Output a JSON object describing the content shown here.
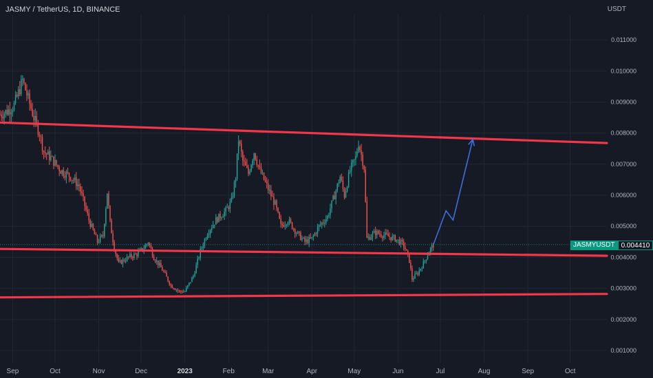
{
  "header": {
    "title": "JASMY / TetherUS, 1D, BINANCE",
    "currency": "USDT"
  },
  "price_tag": {
    "symbol": "JASMYUSDT",
    "value": "0.004410"
  },
  "colors": {
    "background": "#161a25",
    "up": "#26a69a",
    "down": "#ef5350",
    "trendline": "#f2374b",
    "projection": "#3d6fe0",
    "grid": "#232733",
    "axis_text": "#b2b5be"
  },
  "chart_data": {
    "type": "candlestick",
    "title": "JASMY / TetherUS, 1D, BINANCE",
    "yaxis": {
      "min": 0.0006,
      "max": 0.0118,
      "position": "right",
      "ticks": [
        0.001,
        0.002,
        0.003,
        0.004,
        0.005,
        0.006,
        0.007,
        0.008,
        0.009,
        0.01,
        0.011
      ],
      "tick_labels": [
        "0.001000",
        "0.002000",
        "0.003000",
        "0.004000",
        "0.005000",
        "0.006000",
        "0.007000",
        "0.008000",
        "0.009000",
        "0.010000",
        "0.011000"
      ]
    },
    "xaxis": {
      "min": "2022-08-23",
      "max": "2023-10-27",
      "ticks": [
        {
          "date": "2022-09-01",
          "label": "Sep"
        },
        {
          "date": "2022-10-01",
          "label": "Oct"
        },
        {
          "date": "2022-11-01",
          "label": "Nov"
        },
        {
          "date": "2022-12-01",
          "label": "Dec"
        },
        {
          "date": "2023-01-01",
          "label": "2023"
        },
        {
          "date": "2023-02-01",
          "label": "Feb"
        },
        {
          "date": "2023-03-01",
          "label": "Mar"
        },
        {
          "date": "2023-04-01",
          "label": "Apr"
        },
        {
          "date": "2023-05-01",
          "label": "May"
        },
        {
          "date": "2023-06-01",
          "label": "Jun"
        },
        {
          "date": "2023-07-01",
          "label": "Jul"
        },
        {
          "date": "2023-08-01",
          "label": "Aug"
        },
        {
          "date": "2023-09-01",
          "label": "Sep"
        },
        {
          "date": "2023-10-01",
          "label": "Oct"
        }
      ]
    },
    "price_keypoints": [
      [
        "2022-08-23",
        0.0086
      ],
      [
        "2022-08-28",
        0.0087
      ],
      [
        "2022-09-02",
        0.0089
      ],
      [
        "2022-09-05",
        0.0093
      ],
      [
        "2022-09-08",
        0.0097
      ],
      [
        "2022-09-12",
        0.0091
      ],
      [
        "2022-09-16",
        0.0085
      ],
      [
        "2022-09-20",
        0.008
      ],
      [
        "2022-09-23",
        0.0074
      ],
      [
        "2022-09-28",
        0.0072
      ],
      [
        "2022-10-05",
        0.0068
      ],
      [
        "2022-10-12",
        0.0066
      ],
      [
        "2022-10-18",
        0.0063
      ],
      [
        "2022-10-25",
        0.0052
      ],
      [
        "2022-10-31",
        0.0045
      ],
      [
        "2022-11-04",
        0.0047
      ],
      [
        "2022-11-07",
        0.0061
      ],
      [
        "2022-11-09",
        0.0051
      ],
      [
        "2022-11-12",
        0.0043
      ],
      [
        "2022-11-15",
        0.0038
      ],
      [
        "2022-11-22",
        0.004
      ],
      [
        "2022-11-28",
        0.0041
      ],
      [
        "2022-12-03",
        0.0043
      ],
      [
        "2022-12-06",
        0.0045
      ],
      [
        "2022-12-10",
        0.004
      ],
      [
        "2022-12-16",
        0.0036
      ],
      [
        "2022-12-22",
        0.0031
      ],
      [
        "2022-12-28",
        0.0029
      ],
      [
        "2023-01-01",
        0.0029
      ],
      [
        "2023-01-07",
        0.0034
      ],
      [
        "2023-01-12",
        0.0042
      ],
      [
        "2023-01-17",
        0.0048
      ],
      [
        "2023-01-23",
        0.0052
      ],
      [
        "2023-01-30",
        0.0055
      ],
      [
        "2023-02-03",
        0.0058
      ],
      [
        "2023-02-06",
        0.0066
      ],
      [
        "2023-02-08",
        0.0078
      ],
      [
        "2023-02-11",
        0.0071
      ],
      [
        "2023-02-15",
        0.0067
      ],
      [
        "2023-02-19",
        0.0074
      ],
      [
        "2023-02-23",
        0.0068
      ],
      [
        "2023-03-01",
        0.0062
      ],
      [
        "2023-03-06",
        0.0057
      ],
      [
        "2023-03-10",
        0.005
      ],
      [
        "2023-03-15",
        0.0052
      ],
      [
        "2023-03-21",
        0.0048
      ],
      [
        "2023-03-27",
        0.0045
      ],
      [
        "2023-04-01",
        0.0046
      ],
      [
        "2023-04-06",
        0.005
      ],
      [
        "2023-04-12",
        0.0053
      ],
      [
        "2023-04-17",
        0.006
      ],
      [
        "2023-04-21",
        0.0066
      ],
      [
        "2023-04-24",
        0.006
      ],
      [
        "2023-04-28",
        0.0068
      ],
      [
        "2023-05-02",
        0.0072
      ],
      [
        "2023-05-04",
        0.0077
      ],
      [
        "2023-05-08",
        0.0069
      ],
      [
        "2023-05-10",
        0.0046
      ],
      [
        "2023-05-16",
        0.0048
      ],
      [
        "2023-05-23",
        0.0047
      ],
      [
        "2023-05-30",
        0.0046
      ],
      [
        "2023-06-05",
        0.0044
      ],
      [
        "2023-06-09",
        0.0039
      ],
      [
        "2023-06-11",
        0.0033
      ],
      [
        "2023-06-15",
        0.0035
      ],
      [
        "2023-06-19",
        0.0038
      ],
      [
        "2023-06-23",
        0.0042
      ],
      [
        "2023-06-26",
        0.0044
      ]
    ],
    "drawings": {
      "trendlines": [
        {
          "from": [
            "2022-08-23",
            0.00834
          ],
          "to": [
            "2023-10-27",
            0.00768
          ]
        },
        {
          "from": [
            "2022-08-23",
            0.00427
          ],
          "to": [
            "2023-10-27",
            0.00405
          ]
        },
        {
          "from": [
            "2022-08-23",
            0.00271
          ],
          "to": [
            "2023-10-27",
            0.00282
          ]
        }
      ],
      "projection": [
        [
          "2023-06-26",
          0.0044
        ],
        [
          "2023-07-05",
          0.0055
        ],
        [
          "2023-07-10",
          0.0052
        ],
        [
          "2023-07-24",
          0.0078
        ]
      ]
    }
  }
}
